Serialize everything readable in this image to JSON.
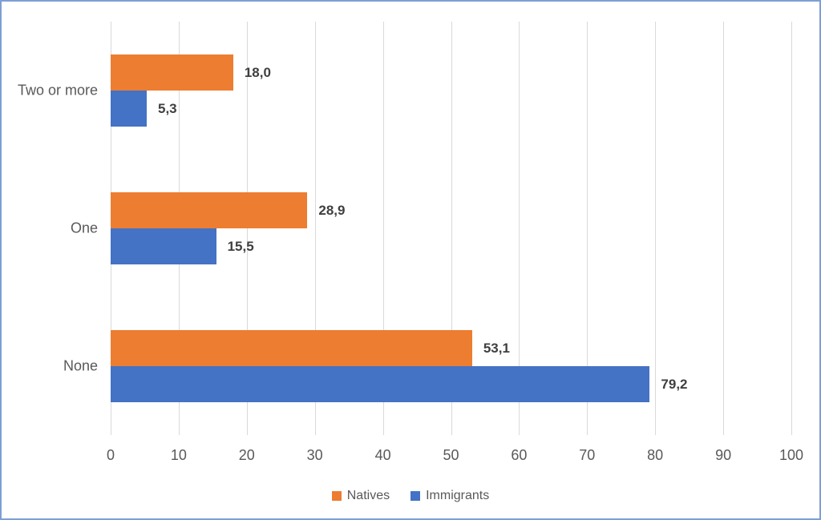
{
  "chart_data": {
    "type": "bar",
    "orientation": "horizontal",
    "title": "",
    "categories": [
      "Two or more",
      "One",
      "None"
    ],
    "series": [
      {
        "name": "Natives",
        "color": "#ED7D31",
        "values": [
          18.0,
          28.9,
          53.1
        ],
        "labels": [
          "18,0",
          "28,9",
          "53,1"
        ]
      },
      {
        "name": "Immigrants",
        "color": "#4472C4",
        "values": [
          5.3,
          15.5,
          79.2
        ],
        "labels": [
          "5,3",
          "15,5",
          "79,2"
        ]
      }
    ],
    "x_axis": {
      "min": 0,
      "max": 100,
      "ticks": [
        0,
        10,
        20,
        30,
        40,
        50,
        60,
        70,
        80,
        90,
        100
      ]
    },
    "legend": {
      "position": "bottom",
      "entries": [
        "Natives",
        "Immigrants"
      ]
    },
    "grid": true
  },
  "colors": {
    "gridline": "#D9D9D9",
    "axis_text": "#595959",
    "category_text": "#595959",
    "data_label_text": "#3F3F3F",
    "legend_text": "#595959",
    "frame_border": "#7F9FD4",
    "background": "#FFFFFF"
  }
}
